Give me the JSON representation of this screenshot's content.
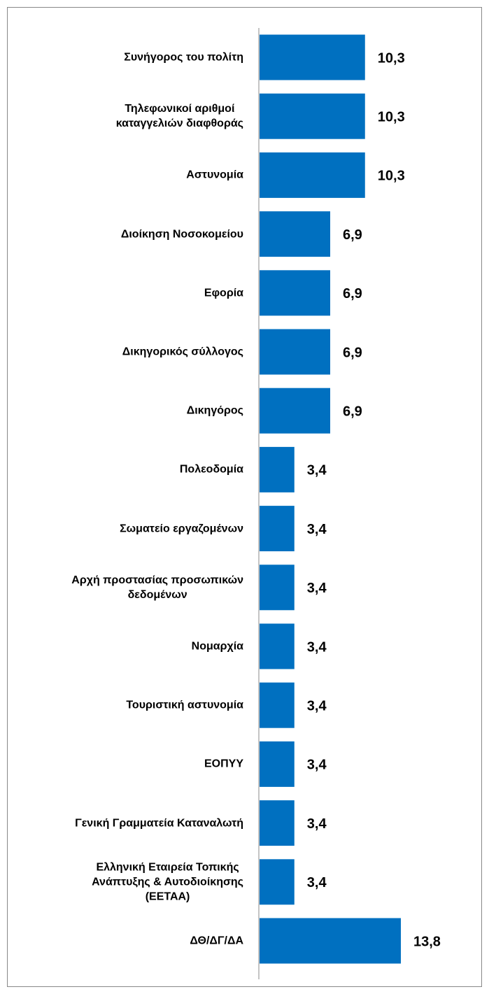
{
  "chart_data": {
    "type": "barh",
    "categories": [
      "Συνήγορος του πολίτη",
      "Τηλεφωνικοί αριθμοί\nκαταγγελιών διαφθοράς",
      "Αστυνομία",
      "Διοίκηση Νοσοκομείου",
      "Εφορία",
      "Δικηγορικός σύλλογος",
      "Δικηγόρος",
      "Πολεοδομία",
      "Σωματείο εργαζομένων",
      "Αρχή προστασίας προσωπικών\nδεδομένων",
      "Νομαρχία",
      "Τουριστική αστυνομία",
      "ΕΟΠΥΥ",
      "Γενική Γραμματεία Καταναλωτή",
      "Ελληνική Εταιρεία Τοπικής\nΑνάπτυξης & Αυτοδιοίκησης\n(ΕΕΤΑΑ)",
      "ΔΘ/ΔΓ/ΔΑ"
    ],
    "values": [
      10.3,
      10.3,
      10.3,
      6.9,
      6.9,
      6.9,
      6.9,
      3.4,
      3.4,
      3.4,
      3.4,
      3.4,
      3.4,
      3.4,
      3.4,
      13.8
    ],
    "value_labels": [
      "10,3",
      "10,3",
      "10,3",
      "6,9",
      "6,9",
      "6,9",
      "6,9",
      "3,4",
      "3,4",
      "3,4",
      "3,4",
      "3,4",
      "3,4",
      "3,4",
      "3,4",
      "13,8"
    ],
    "color": "#0070c0"
  }
}
